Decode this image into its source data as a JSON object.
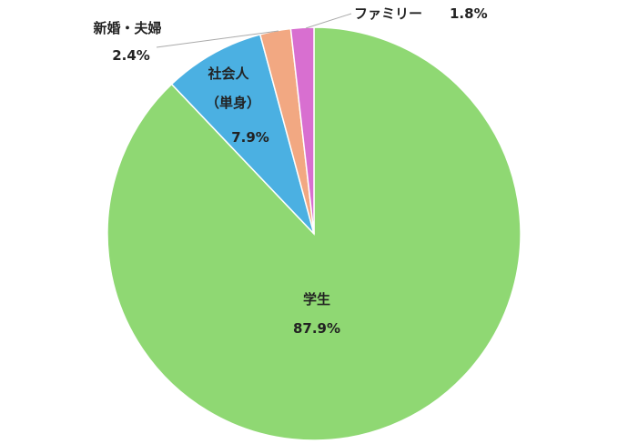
{
  "chart_data": {
    "type": "pie",
    "start_angle": "12 o'clock",
    "direction": "clockwise",
    "slices": [
      {
        "label": "学生",
        "value": 87.9,
        "value_label": "87.9%",
        "color": "#8FD873"
      },
      {
        "label": "社会人",
        "label2": "（単身）",
        "value": 7.9,
        "value_label": "7.9%",
        "color": "#4BB0E2"
      },
      {
        "label": "新婚・夫婦",
        "value": 2.4,
        "value_label": "2.4%",
        "color": "#F2A882"
      },
      {
        "label": "ファミリー",
        "value": 1.8,
        "value_label": "1.8%",
        "color": "#D86FD0"
      }
    ],
    "legend": "none"
  }
}
